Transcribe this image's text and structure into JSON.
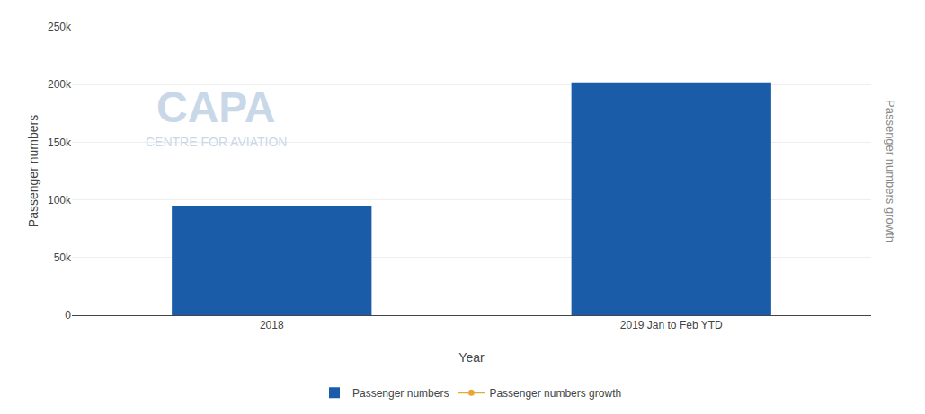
{
  "chart_data": {
    "type": "bar",
    "categories": [
      "2018",
      "2019 Jan to Feb YTD"
    ],
    "series": [
      {
        "name": "Passenger numbers",
        "type": "bar",
        "color": "#1a5ca8",
        "values": [
          95000,
          202000
        ]
      },
      {
        "name": "Passenger numbers growth",
        "type": "line",
        "marker": "circle",
        "color": "#e8a838",
        "values": [
          null,
          null
        ]
      }
    ],
    "xlabel": "Year",
    "ylabel": "Passenger numbers",
    "y2label": "Passenger numbers growth",
    "ylim": [
      0,
      250000
    ],
    "yticks": [
      0,
      {
        "value": 50000,
        "label": "50k"
      },
      {
        "value": 100000,
        "label": "100k"
      },
      {
        "value": 150000,
        "label": "150k"
      },
      {
        "value": 200000,
        "label": "200k"
      },
      {
        "value": 250000,
        "label": "250k"
      }
    ],
    "grid": true,
    "legend": "bottom",
    "annotations": [
      {
        "text": "CAPA",
        "color": "#c8d8e8"
      },
      {
        "text": "CENTRE FOR AVIATION",
        "color": "#c8d8e8"
      }
    ]
  }
}
